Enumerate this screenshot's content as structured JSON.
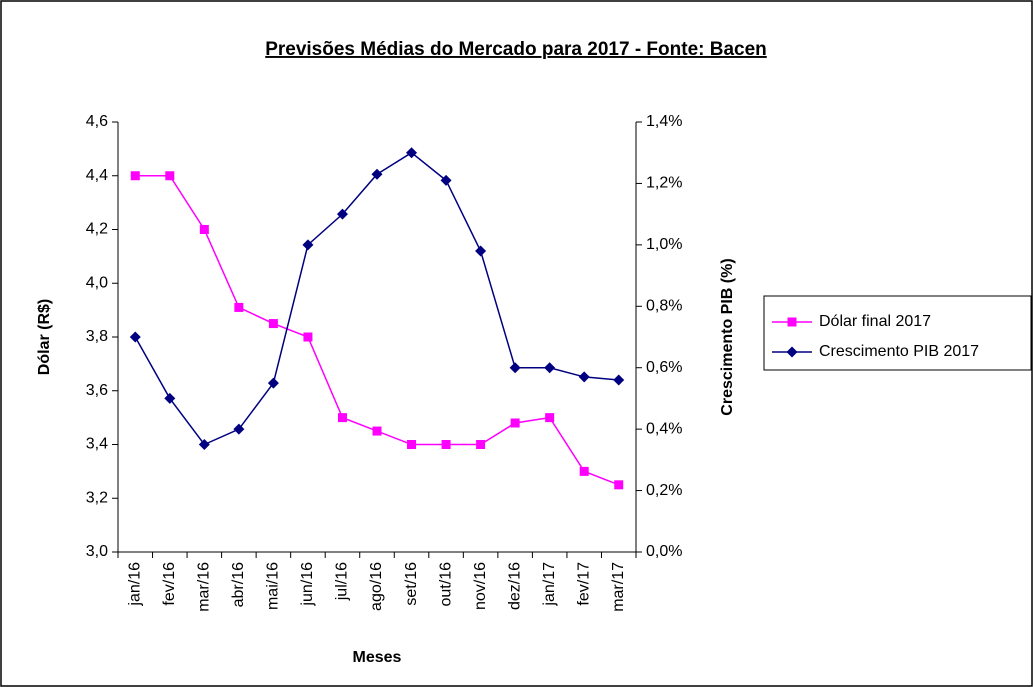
{
  "chart_data": {
    "type": "line",
    "title": "Previsões Médias do Mercado para 2017 - Fonte: Bacen",
    "xlabel": "Meses",
    "ylabel": "Dólar (R$)",
    "y2label": "Crescimento PIB (%)",
    "categories": [
      "jan/16",
      "fev/16",
      "mar/16",
      "abr/16",
      "mai/16",
      "jun/16",
      "jul/16",
      "ago/16",
      "set/16",
      "out/16",
      "nov/16",
      "dez/16",
      "jan/17",
      "fev/17",
      "mar/17"
    ],
    "series": [
      {
        "name": "Dólar final 2017",
        "color": "#ff00ff",
        "marker": "square",
        "values": [
          4.4,
          4.4,
          4.2,
          3.91,
          3.85,
          3.8,
          3.5,
          3.45,
          3.4,
          3.4,
          3.4,
          3.48,
          3.5,
          3.3,
          3.25
        ]
      },
      {
        "name": "Crescimento PIB 2017",
        "color": "#000080",
        "marker": "diamond",
        "axis": "y2",
        "values": [
          0.7,
          0.5,
          0.35,
          0.4,
          0.55,
          1.0,
          1.1,
          1.23,
          1.3,
          1.21,
          0.98,
          0.6,
          0.6,
          0.57,
          0.56
        ]
      }
    ],
    "ylim": [
      3.0,
      4.6
    ],
    "yticks": [
      {
        "value": 3.0,
        "label": "3,0"
      },
      {
        "value": 3.2,
        "label": "3,2"
      },
      {
        "value": 3.4,
        "label": "3,4"
      },
      {
        "value": 3.6,
        "label": "3,6"
      },
      {
        "value": 3.8,
        "label": "3,8"
      },
      {
        "value": 4.0,
        "label": "4,0"
      },
      {
        "value": 4.2,
        "label": "4,2"
      },
      {
        "value": 4.4,
        "label": "4,4"
      },
      {
        "value": 4.6,
        "label": "4,6"
      }
    ],
    "y2lim": [
      0,
      1.4
    ],
    "y2ticks": [
      {
        "value": 0,
        "label": "0,0%"
      },
      {
        "value": 0.2,
        "label": "0,2%"
      },
      {
        "value": 0.4,
        "label": "0,4%"
      },
      {
        "value": 0.6,
        "label": "0,6%"
      },
      {
        "value": 0.8,
        "label": "0,8%"
      },
      {
        "value": 1.0,
        "label": "1,0%"
      },
      {
        "value": 1.2,
        "label": "1,2%"
      },
      {
        "value": 1.4,
        "label": "1,4%"
      }
    ],
    "grid": false,
    "legend": "right"
  }
}
